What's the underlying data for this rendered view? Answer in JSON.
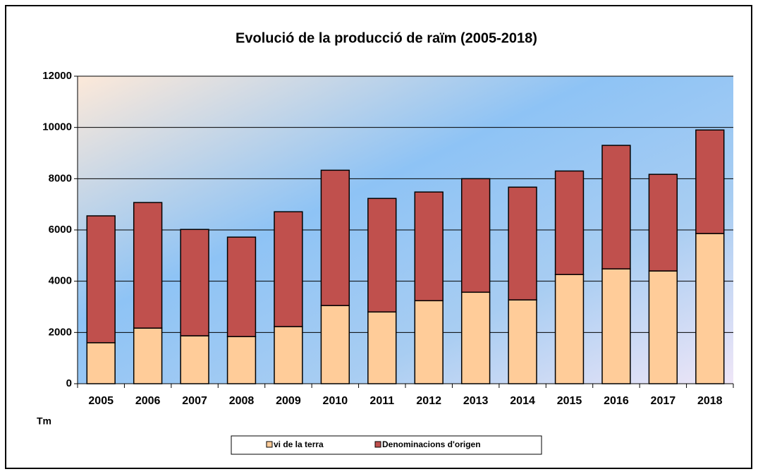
{
  "chart_data": {
    "type": "stacked_bar",
    "title": "Evolució de la producció de raïm (2005-2018)",
    "y_label": "Tm",
    "categories": [
      "2005",
      "2006",
      "2007",
      "2008",
      "2009",
      "2010",
      "2011",
      "2012",
      "2013",
      "2014",
      "2015",
      "2016",
      "2017",
      "2018"
    ],
    "series": [
      {
        "name": "vi de la terra",
        "color": "#ffcc99",
        "values": [
          1600,
          2170,
          1870,
          1840,
          2230,
          3050,
          2800,
          3240,
          3570,
          3270,
          4260,
          4480,
          4400,
          5860
        ]
      },
      {
        "name": "Denominacions d'origen",
        "color": "#c0504d",
        "values": [
          4950,
          4900,
          4150,
          3880,
          4480,
          5280,
          4430,
          4240,
          4430,
          4400,
          4040,
          4820,
          3770,
          4040
        ]
      }
    ],
    "ylim": [
      0,
      12000
    ],
    "yticks": [
      0,
      2000,
      4000,
      6000,
      8000,
      10000,
      12000
    ],
    "grid": true,
    "legend": "bottom"
  }
}
